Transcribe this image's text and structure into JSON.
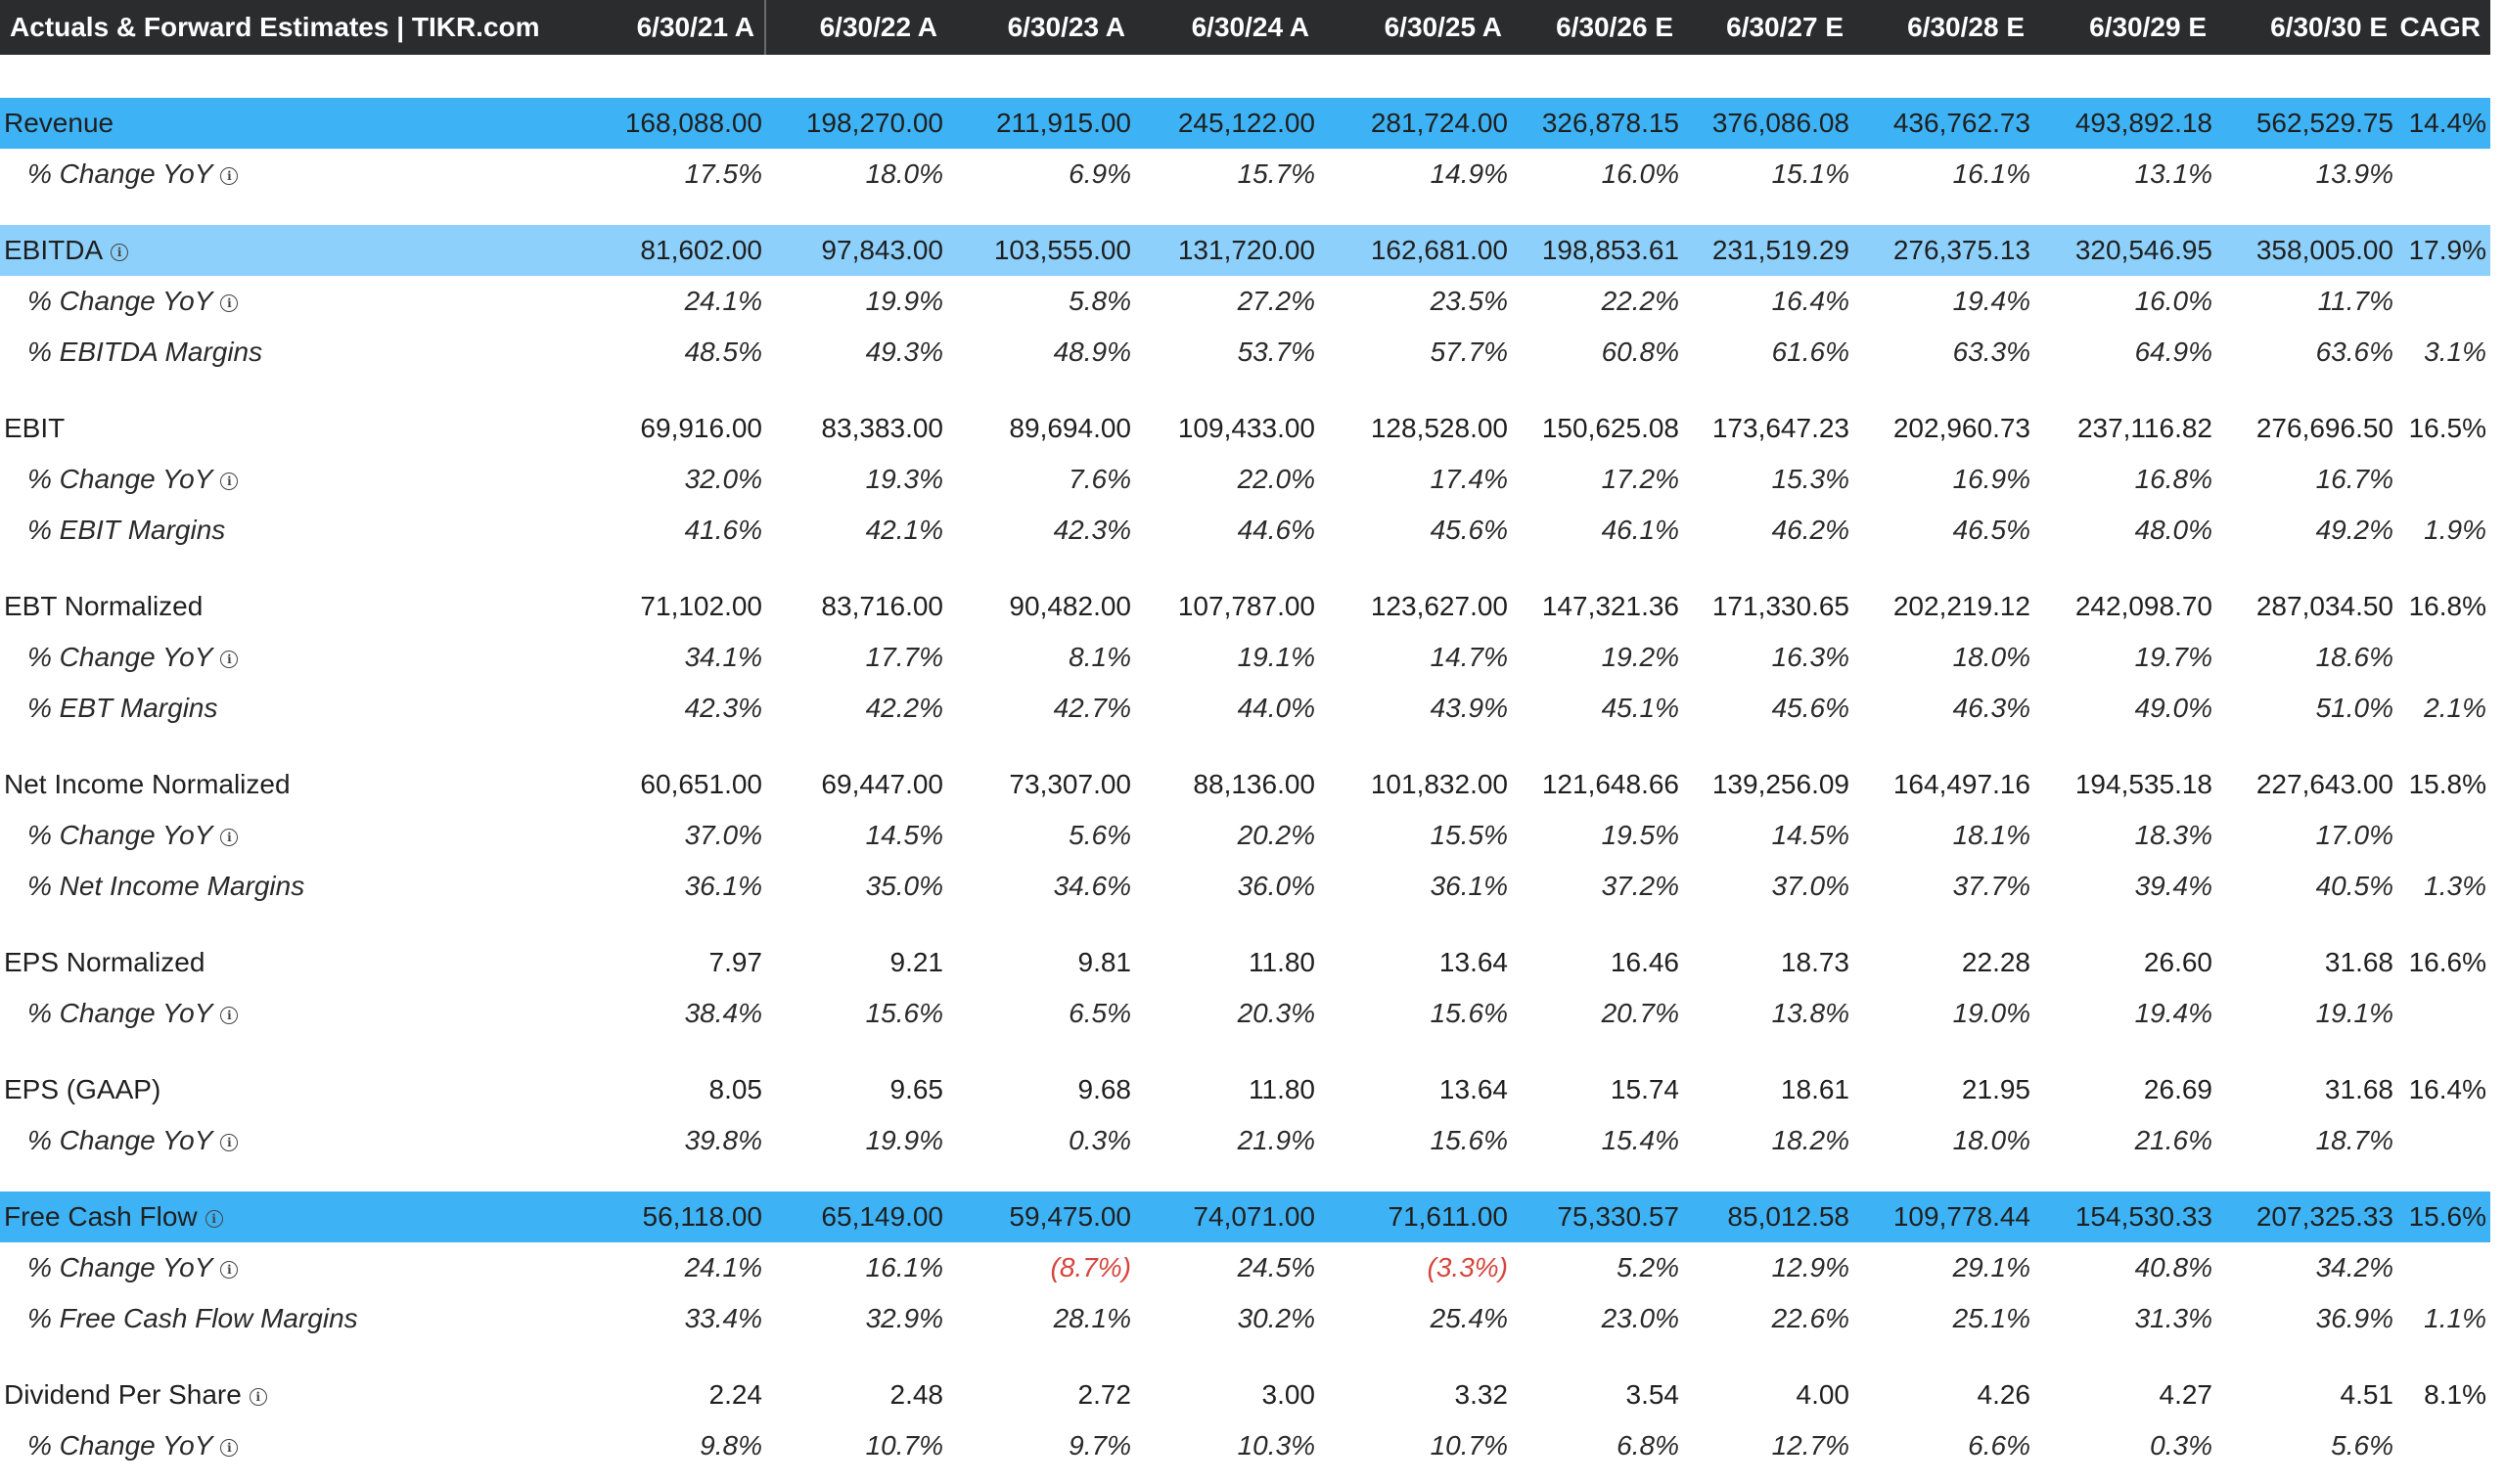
{
  "header": {
    "title": "Actuals & Forward Estimates | TIKR.com",
    "columns": [
      "6/30/21 A",
      "6/30/22 A",
      "6/30/23 A",
      "6/30/24 A",
      "6/30/25 A",
      "6/30/26 E",
      "6/30/27 E",
      "6/30/28 E",
      "6/30/29 E",
      "6/30/30 E",
      "CAGR"
    ]
  },
  "icons": {
    "info": "info-circle-icon"
  },
  "colors": {
    "header_bg": "#2b2c2e",
    "highlight_strong": "#3db3f5",
    "highlight_light": "#8dd0fb",
    "negative": "#d6453d"
  },
  "rows": [
    {
      "label": "Revenue",
      "values": [
        "168,088.00",
        "198,270.00",
        "211,915.00",
        "245,122.00",
        "281,724.00",
        "326,878.15",
        "376,086.08",
        "436,762.73",
        "493,892.18",
        "562,529.75",
        "14.4%"
      ]
    },
    {
      "label": "% Change YoY",
      "values": [
        "17.5%",
        "18.0%",
        "6.9%",
        "15.7%",
        "14.9%",
        "16.0%",
        "15.1%",
        "16.1%",
        "13.1%",
        "13.9%",
        ""
      ]
    },
    {
      "label": "EBITDA",
      "values": [
        "81,602.00",
        "97,843.00",
        "103,555.00",
        "131,720.00",
        "162,681.00",
        "198,853.61",
        "231,519.29",
        "276,375.13",
        "320,546.95",
        "358,005.00",
        "17.9%"
      ]
    },
    {
      "label": "% Change YoY",
      "values": [
        "24.1%",
        "19.9%",
        "5.8%",
        "27.2%",
        "23.5%",
        "22.2%",
        "16.4%",
        "19.4%",
        "16.0%",
        "11.7%",
        ""
      ]
    },
    {
      "label": "% EBITDA Margins",
      "values": [
        "48.5%",
        "49.3%",
        "48.9%",
        "53.7%",
        "57.7%",
        "60.8%",
        "61.6%",
        "63.3%",
        "64.9%",
        "63.6%",
        "3.1%"
      ]
    },
    {
      "label": "EBIT",
      "values": [
        "69,916.00",
        "83,383.00",
        "89,694.00",
        "109,433.00",
        "128,528.00",
        "150,625.08",
        "173,647.23",
        "202,960.73",
        "237,116.82",
        "276,696.50",
        "16.5%"
      ]
    },
    {
      "label": "% Change YoY",
      "values": [
        "32.0%",
        "19.3%",
        "7.6%",
        "22.0%",
        "17.4%",
        "17.2%",
        "15.3%",
        "16.9%",
        "16.8%",
        "16.7%",
        ""
      ]
    },
    {
      "label": "% EBIT Margins",
      "values": [
        "41.6%",
        "42.1%",
        "42.3%",
        "44.6%",
        "45.6%",
        "46.1%",
        "46.2%",
        "46.5%",
        "48.0%",
        "49.2%",
        "1.9%"
      ]
    },
    {
      "label": "EBT Normalized",
      "values": [
        "71,102.00",
        "83,716.00",
        "90,482.00",
        "107,787.00",
        "123,627.00",
        "147,321.36",
        "171,330.65",
        "202,219.12",
        "242,098.70",
        "287,034.50",
        "16.8%"
      ]
    },
    {
      "label": "% Change YoY",
      "values": [
        "34.1%",
        "17.7%",
        "8.1%",
        "19.1%",
        "14.7%",
        "19.2%",
        "16.3%",
        "18.0%",
        "19.7%",
        "18.6%",
        ""
      ]
    },
    {
      "label": "% EBT Margins",
      "values": [
        "42.3%",
        "42.2%",
        "42.7%",
        "44.0%",
        "43.9%",
        "45.1%",
        "45.6%",
        "46.3%",
        "49.0%",
        "51.0%",
        "2.1%"
      ]
    },
    {
      "label": "Net Income Normalized",
      "values": [
        "60,651.00",
        "69,447.00",
        "73,307.00",
        "88,136.00",
        "101,832.00",
        "121,648.66",
        "139,256.09",
        "164,497.16",
        "194,535.18",
        "227,643.00",
        "15.8%"
      ]
    },
    {
      "label": "% Change YoY",
      "values": [
        "37.0%",
        "14.5%",
        "5.6%",
        "20.2%",
        "15.5%",
        "19.5%",
        "14.5%",
        "18.1%",
        "18.3%",
        "17.0%",
        ""
      ]
    },
    {
      "label": "% Net Income Margins",
      "values": [
        "36.1%",
        "35.0%",
        "34.6%",
        "36.0%",
        "36.1%",
        "37.2%",
        "37.0%",
        "37.7%",
        "39.4%",
        "40.5%",
        "1.3%"
      ]
    },
    {
      "label": "EPS Normalized",
      "values": [
        "7.97",
        "9.21",
        "9.81",
        "11.80",
        "13.64",
        "16.46",
        "18.73",
        "22.28",
        "26.60",
        "31.68",
        "16.6%"
      ]
    },
    {
      "label": "% Change YoY",
      "values": [
        "38.4%",
        "15.6%",
        "6.5%",
        "20.3%",
        "15.6%",
        "20.7%",
        "13.8%",
        "19.0%",
        "19.4%",
        "19.1%",
        ""
      ]
    },
    {
      "label": "EPS (GAAP)",
      "values": [
        "8.05",
        "9.65",
        "9.68",
        "11.80",
        "13.64",
        "15.74",
        "18.61",
        "21.95",
        "26.69",
        "31.68",
        "16.4%"
      ]
    },
    {
      "label": "% Change YoY",
      "values": [
        "39.8%",
        "19.9%",
        "0.3%",
        "21.9%",
        "15.6%",
        "15.4%",
        "18.2%",
        "18.0%",
        "21.6%",
        "18.7%",
        ""
      ]
    },
    {
      "label": "Free Cash Flow",
      "values": [
        "56,118.00",
        "65,149.00",
        "59,475.00",
        "74,071.00",
        "71,611.00",
        "75,330.57",
        "85,012.58",
        "109,778.44",
        "154,530.33",
        "207,325.33",
        "15.6%"
      ]
    },
    {
      "label": "% Change YoY",
      "values": [
        "24.1%",
        "16.1%",
        "(8.7%)",
        "24.5%",
        "(3.3%)",
        "5.2%",
        "12.9%",
        "29.1%",
        "40.8%",
        "34.2%",
        ""
      ]
    },
    {
      "label": "% Free Cash Flow Margins",
      "values": [
        "33.4%",
        "32.9%",
        "28.1%",
        "30.2%",
        "25.4%",
        "23.0%",
        "22.6%",
        "25.1%",
        "31.3%",
        "36.9%",
        "1.1%"
      ]
    },
    {
      "label": "Dividend Per Share",
      "values": [
        "2.24",
        "2.48",
        "2.72",
        "3.00",
        "3.32",
        "3.54",
        "4.00",
        "4.26",
        "4.27",
        "4.51",
        "8.1%"
      ]
    },
    {
      "label": "% Change YoY",
      "values": [
        "9.8%",
        "10.7%",
        "9.7%",
        "10.3%",
        "10.7%",
        "6.8%",
        "12.7%",
        "6.6%",
        "0.3%",
        "5.6%",
        ""
      ]
    }
  ]
}
